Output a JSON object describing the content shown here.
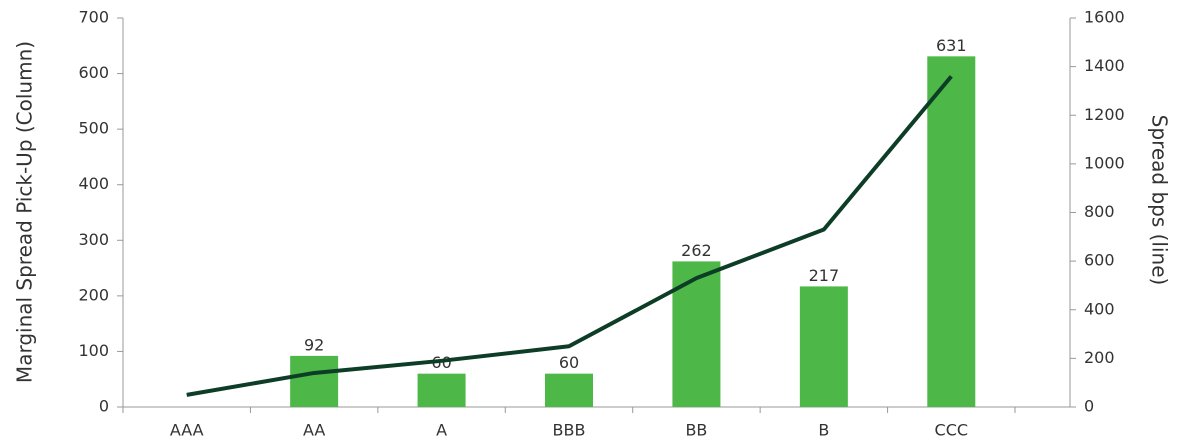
{
  "chart_data": {
    "type": "combo",
    "categories": [
      "AAA",
      "AA",
      "A",
      "BBB",
      "BB",
      "B",
      "CCC"
    ],
    "y_label": "Marginal Spread Pick-Up (Column)",
    "y2_label": "Spread bps (line)",
    "ylim": [
      0,
      700
    ],
    "yticks": [
      0,
      100,
      200,
      300,
      400,
      500,
      600,
      700
    ],
    "y2lim": [
      0,
      1600
    ],
    "y2ticks": [
      0,
      200,
      400,
      600,
      800,
      1000,
      1200,
      1400,
      1600
    ],
    "series": [
      {
        "type": "bar",
        "color": "#4db848",
        "values": [
          null,
          92,
          60,
          60,
          262,
          217,
          631
        ]
      },
      {
        "type": "line",
        "axis": "y2",
        "color": "#0d3d26",
        "values": [
          50,
          140,
          190,
          250,
          530,
          730,
          1360
        ]
      }
    ]
  }
}
